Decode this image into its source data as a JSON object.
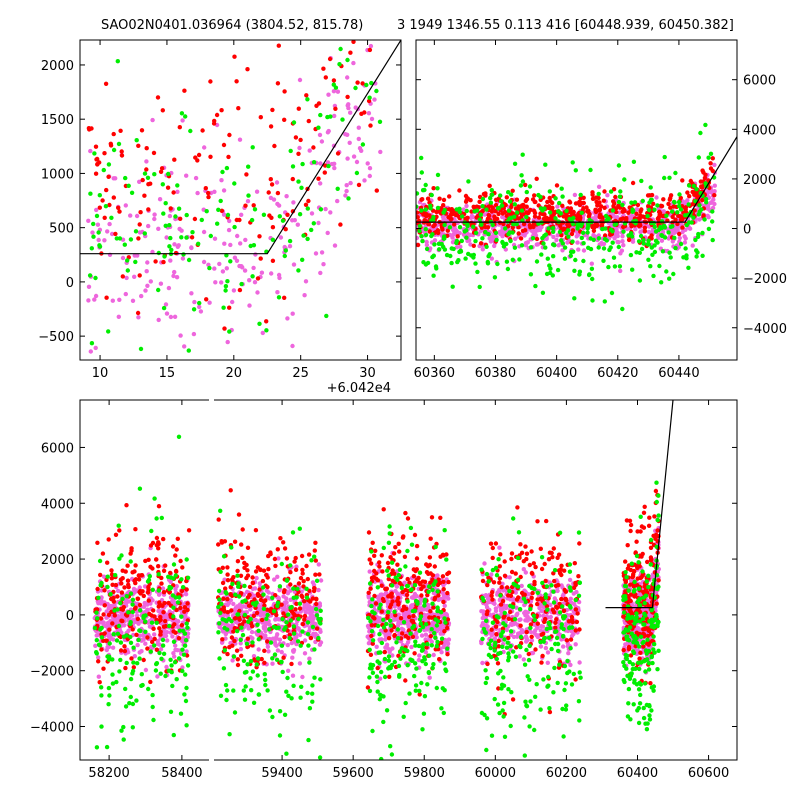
{
  "titles": {
    "left": "SAO02N0401.036964 (3804.52, 815.78)",
    "right": "3 1949 1346.55 0.113 416 [60448.939, 60450.382]"
  },
  "colors": {
    "green": "#00ee00",
    "red": "#ff0000",
    "violet": "#ee66dd",
    "model": "#000000"
  },
  "chart_data": [
    {
      "type": "scatter",
      "panel": "top-left (phase zoom)",
      "x_offset_label": "+6.042e4",
      "xlim": [
        8.5,
        32.5
      ],
      "ylim": [
        -720,
        2230
      ],
      "xticks": [
        10,
        15,
        20,
        25,
        30
      ],
      "yticks": [
        -500,
        0,
        500,
        1000,
        1500,
        2000
      ],
      "y_axis_side": "left",
      "point_density": 1,
      "series": [
        {
          "color_key": "violet",
          "x_range": [
            9,
            31
          ],
          "y_center": 300,
          "y_spread": 450,
          "trend": "rise after 22.5",
          "count": 260
        },
        {
          "color_key": "red",
          "x_range": [
            9,
            31
          ],
          "y_center": 850,
          "y_spread": 600,
          "trend": "rise after 22.5",
          "count": 170
        },
        {
          "color_key": "green",
          "x_range": [
            9,
            31
          ],
          "y_center": 500,
          "y_spread": 500,
          "trend": "rise after 22.5",
          "count": 150
        }
      ],
      "model_line": [
        [
          8.5,
          260
        ],
        [
          22.5,
          260
        ],
        [
          32.5,
          2230
        ]
      ]
    },
    {
      "type": "scatter",
      "panel": "top-right",
      "xlim": [
        60354,
        60459
      ],
      "ylim": [
        -5300,
        7600
      ],
      "xticks": [
        60360,
        60380,
        60400,
        60420,
        60440
      ],
      "yticks": [
        -4000,
        -2000,
        0,
        2000,
        4000,
        6000
      ],
      "y_axis_side": "right",
      "point_density": 1.4,
      "series": [
        {
          "color_key": "violet",
          "x_range": [
            60354,
            60452
          ],
          "y_center": 100,
          "y_spread": 450,
          "count": 600
        },
        {
          "color_key": "red",
          "x_range": [
            60354,
            60452
          ],
          "y_center": 500,
          "y_spread": 450,
          "count": 450
        },
        {
          "color_key": "green",
          "x_range": [
            60354,
            60452
          ],
          "y_center": 0,
          "y_spread": 1200,
          "count": 300
        }
      ],
      "model_line": [
        [
          60354,
          260
        ],
        [
          60442,
          260
        ],
        [
          60459,
          3700
        ]
      ]
    },
    {
      "type": "scatter",
      "panel": "bottom (full baseline)",
      "xlim": [
        58120,
        60680
      ],
      "ylim": [
        -5200,
        7700
      ],
      "xticks": [
        58200,
        58400,
        59400,
        59600,
        59800,
        60000,
        60200,
        60400,
        60600
      ],
      "yticks": [
        -4000,
        -2000,
        0,
        2000,
        4000,
        6000
      ],
      "y_axis_side": "left",
      "broken_axis": {
        "gap_from": 58480,
        "gap_to": 59200
      },
      "seasons": [
        [
          58160,
          58420
        ],
        [
          59220,
          59510
        ],
        [
          59640,
          59870
        ],
        [
          59960,
          60240
        ],
        [
          60360,
          60460
        ]
      ],
      "point_density": 1,
      "series": [
        {
          "color_key": "violet",
          "y_center": -100,
          "y_spread": 700,
          "count": 2200
        },
        {
          "color_key": "red",
          "y_center": 500,
          "y_spread": 1200,
          "count": 1100
        },
        {
          "color_key": "green",
          "y_center": -900,
          "y_spread": 1700,
          "count": 900
        }
      ],
      "model_line": [
        [
          60310,
          260
        ],
        [
          60442,
          260
        ],
        [
          60500,
          7700
        ]
      ]
    }
  ]
}
